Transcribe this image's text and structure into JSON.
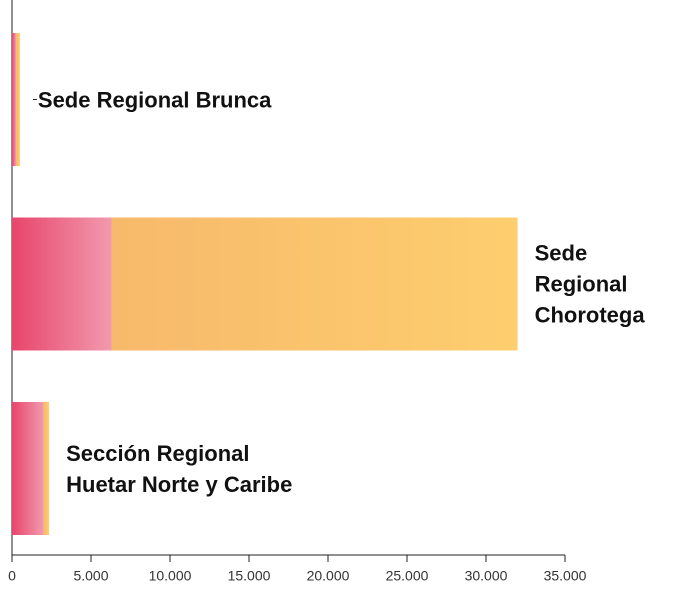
{
  "chart_data": {
    "type": "bar",
    "orientation": "horizontal",
    "stacked": true,
    "categories": [
      "Sede Regional Brunca",
      "Sede\nRegional\nChorotega",
      "Sección Regional\nHuetar Norte y Caribe"
    ],
    "series": [
      {
        "color": "#e8456b",
        "values": [
          250,
          6300,
          2000
        ]
      },
      {
        "color": "#fdc85e",
        "values": [
          250,
          25700,
          350
        ]
      }
    ],
    "xlim": [
      0,
      35000
    ],
    "xticks": [
      0,
      {
        "value": 5000,
        "label": "5.000"
      },
      {
        "value": 10000,
        "label": "10.000"
      },
      {
        "value": 15000,
        "label": "15.000"
      },
      {
        "value": 20000,
        "label": "20.000"
      },
      {
        "value": 25000,
        "label": "25.000"
      },
      {
        "value": 30000,
        "label": "30.000"
      },
      {
        "value": 35000,
        "label": "35.000"
      }
    ]
  }
}
